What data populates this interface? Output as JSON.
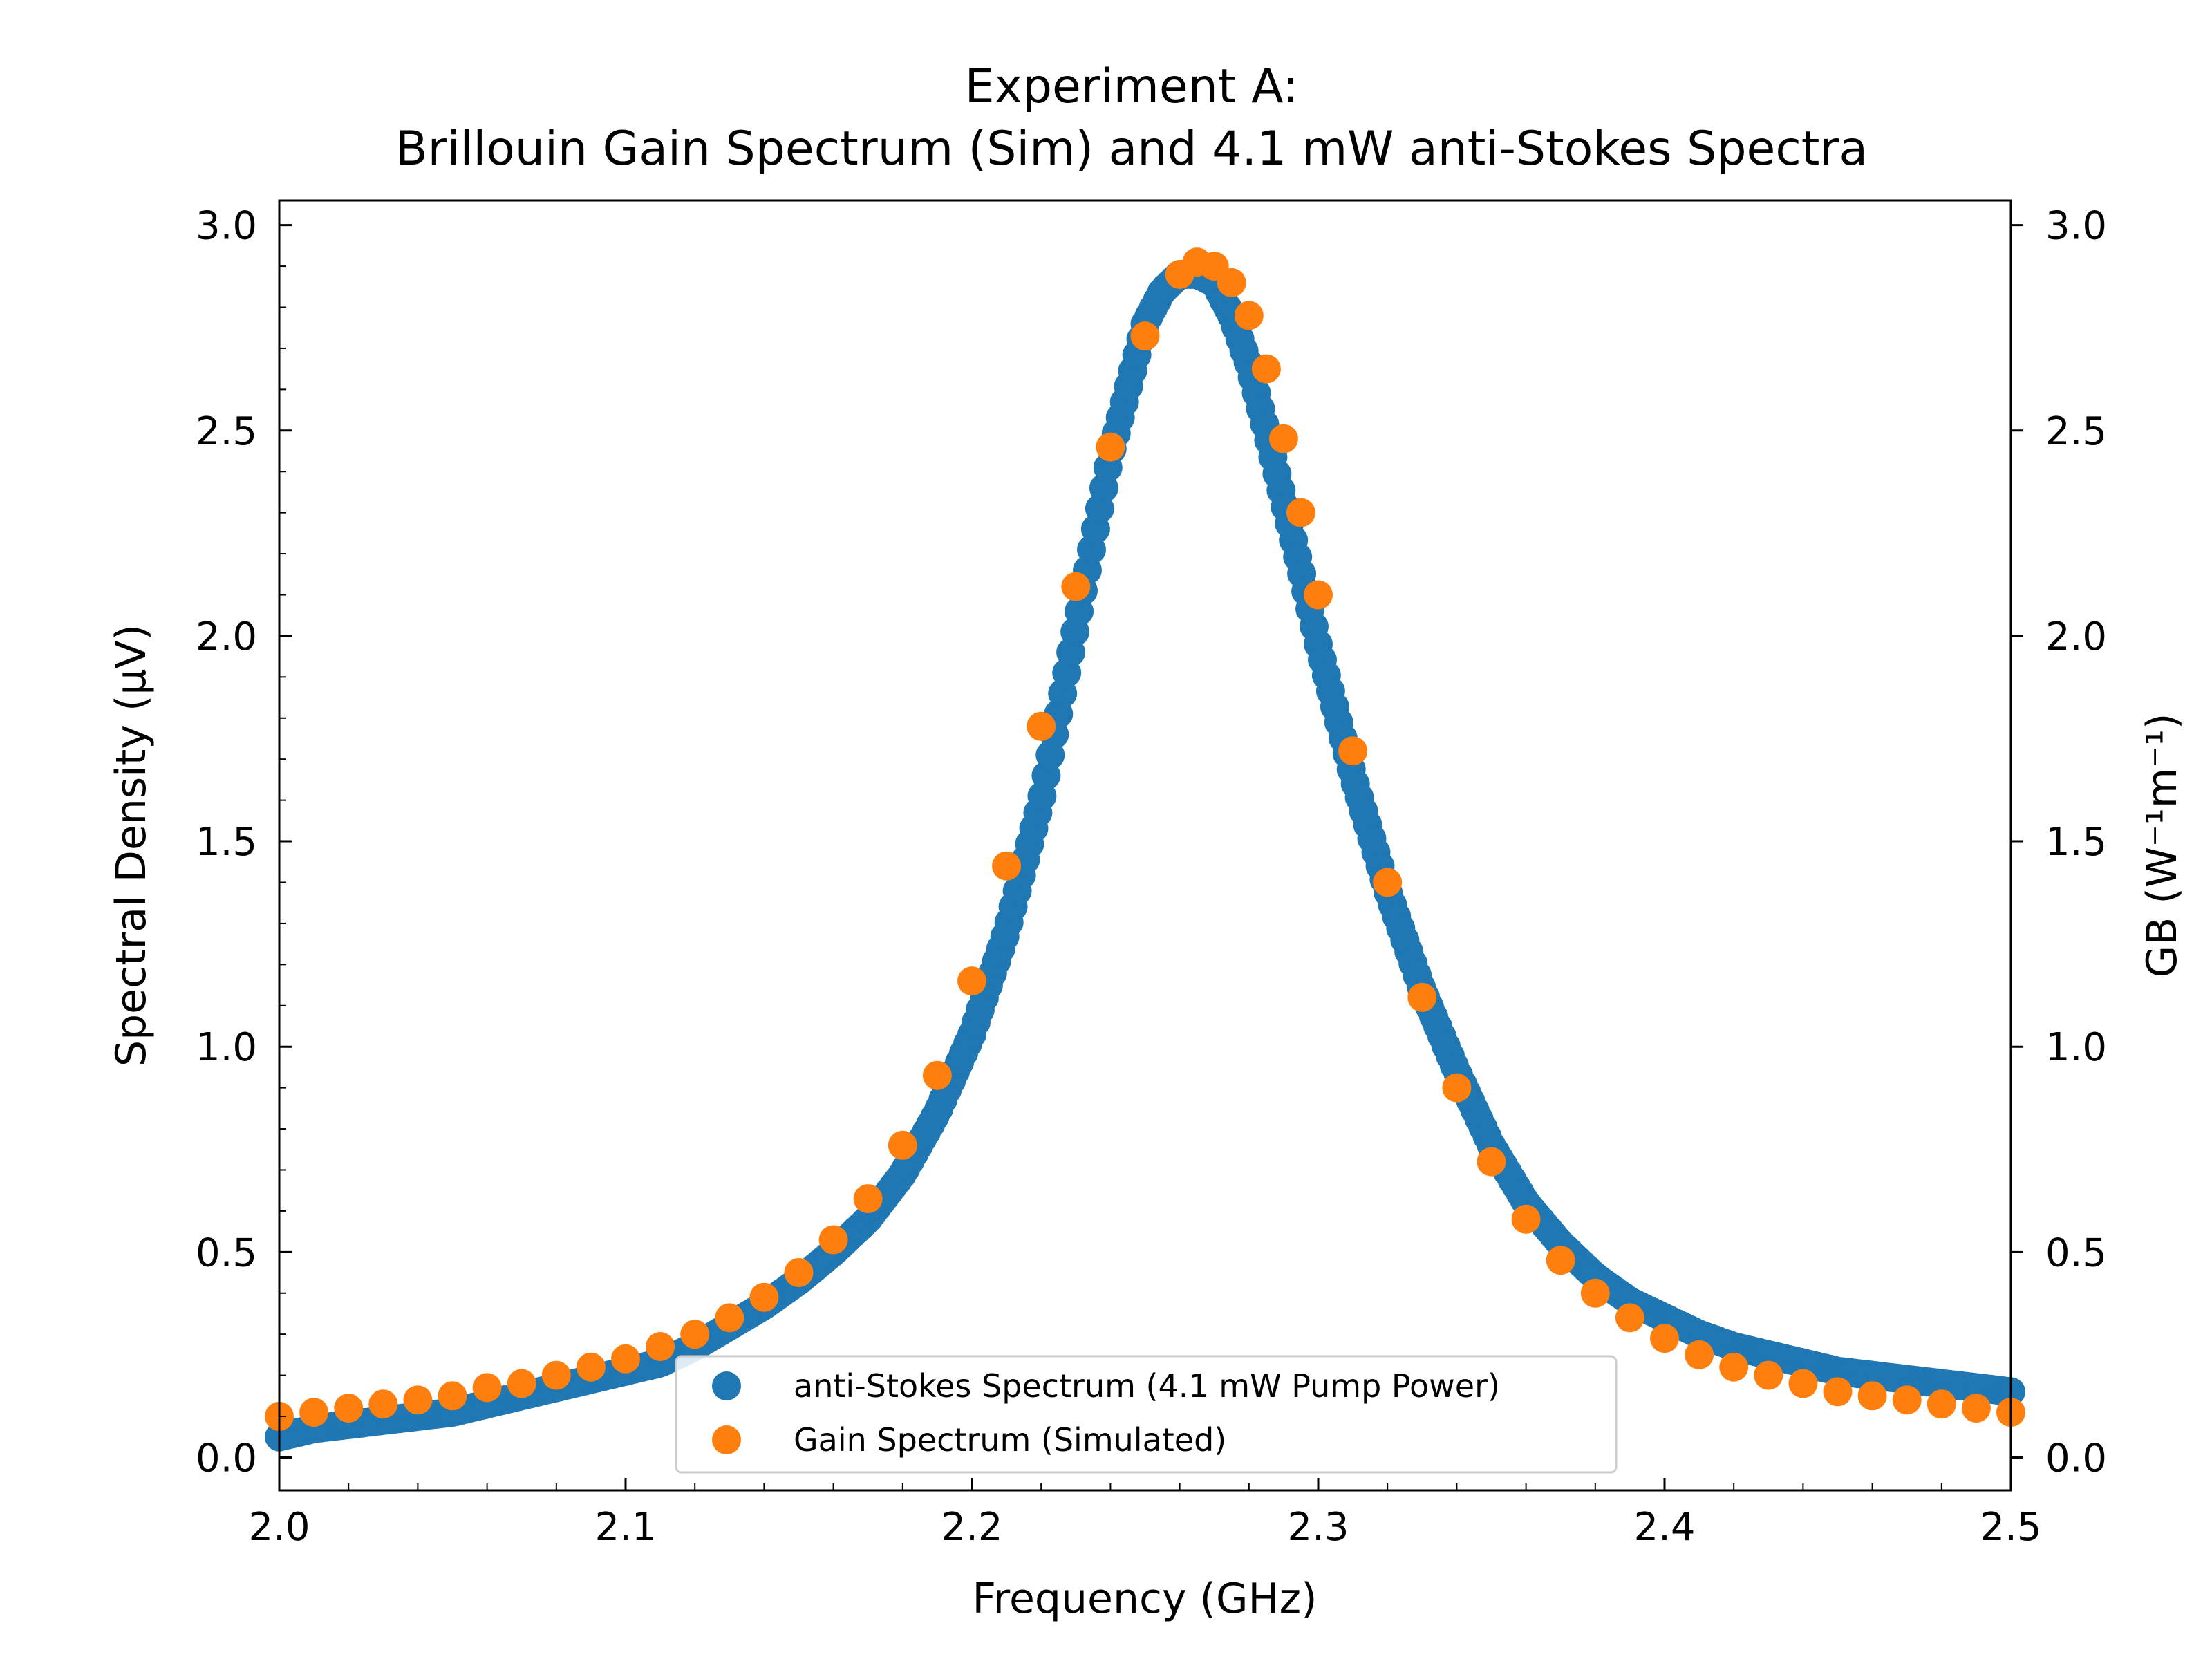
{
  "chart_data": {
    "type": "scatter",
    "title_lines": [
      "Experiment A:",
      "Brillouin Gain Spectrum (Sim) and 4.1 mW anti-Stokes Spectra"
    ],
    "xlabel": "Frequency (GHz)",
    "ylabel_left": "Spectral Density (μV)",
    "ylabel_right": "GB (W⁻¹m⁻¹)",
    "xlim": [
      2.0,
      2.5
    ],
    "ylim_left": [
      -0.08,
      3.06
    ],
    "ylim_right": [
      -0.08,
      3.06
    ],
    "xticks": [
      "2.0",
      "2.1",
      "2.2",
      "2.3",
      "2.4",
      "2.5"
    ],
    "yticks_left": [
      "0.0",
      "0.5",
      "1.0",
      "1.5",
      "2.0",
      "2.5",
      "3.0"
    ],
    "yticks_right": [
      "0.0",
      "0.5",
      "1.0",
      "1.5",
      "2.0",
      "2.5",
      "3.0"
    ],
    "grid": false,
    "legend_position": "bottom-center",
    "series": [
      {
        "name": "anti-Stokes Spectrum (4.1 mW Pump Power)",
        "color": "#1f77b4",
        "axis": "left",
        "x": [
          2.0,
          2.01,
          2.02,
          2.03,
          2.04,
          2.05,
          2.06,
          2.07,
          2.08,
          2.09,
          2.1,
          2.11,
          2.12,
          2.13,
          2.14,
          2.15,
          2.16,
          2.17,
          2.18,
          2.19,
          2.2,
          2.21,
          2.22,
          2.23,
          2.24,
          2.245,
          2.25,
          2.255,
          2.26,
          2.265,
          2.27,
          2.275,
          2.28,
          2.285,
          2.29,
          2.295,
          2.3,
          2.31,
          2.32,
          2.33,
          2.34,
          2.35,
          2.36,
          2.37,
          2.38,
          2.39,
          2.4,
          2.41,
          2.42,
          2.43,
          2.44,
          2.45,
          2.46,
          2.47,
          2.48,
          2.49,
          2.5
        ],
        "y": [
          0.05,
          0.07,
          0.08,
          0.09,
          0.1,
          0.11,
          0.13,
          0.15,
          0.17,
          0.19,
          0.21,
          0.23,
          0.27,
          0.32,
          0.37,
          0.43,
          0.5,
          0.58,
          0.69,
          0.84,
          1.03,
          1.28,
          1.6,
          2.02,
          2.44,
          2.6,
          2.76,
          2.84,
          2.88,
          2.88,
          2.86,
          2.78,
          2.66,
          2.5,
          2.33,
          2.16,
          1.98,
          1.66,
          1.38,
          1.14,
          0.94,
          0.76,
          0.62,
          0.52,
          0.44,
          0.38,
          0.34,
          0.3,
          0.27,
          0.25,
          0.23,
          0.21,
          0.2,
          0.19,
          0.18,
          0.17,
          0.16
        ]
      },
      {
        "name": "Gain Spectrum (Simulated)",
        "color": "#ff7f0e",
        "axis": "right",
        "x": [
          2.0,
          2.01,
          2.02,
          2.03,
          2.04,
          2.05,
          2.06,
          2.07,
          2.08,
          2.09,
          2.1,
          2.11,
          2.12,
          2.13,
          2.14,
          2.15,
          2.16,
          2.17,
          2.18,
          2.19,
          2.2,
          2.21,
          2.22,
          2.23,
          2.24,
          2.25,
          2.26,
          2.265,
          2.27,
          2.275,
          2.28,
          2.285,
          2.29,
          2.295,
          2.3,
          2.31,
          2.32,
          2.33,
          2.34,
          2.35,
          2.36,
          2.37,
          2.38,
          2.39,
          2.4,
          2.41,
          2.42,
          2.43,
          2.44,
          2.45,
          2.46,
          2.47,
          2.48,
          2.49,
          2.5
        ],
        "y": [
          0.1,
          0.11,
          0.12,
          0.13,
          0.14,
          0.15,
          0.17,
          0.18,
          0.2,
          0.22,
          0.24,
          0.27,
          0.3,
          0.34,
          0.39,
          0.45,
          0.53,
          0.63,
          0.76,
          0.93,
          1.16,
          1.44,
          1.78,
          2.12,
          2.46,
          2.73,
          2.88,
          2.91,
          2.9,
          2.86,
          2.78,
          2.65,
          2.48,
          2.3,
          2.1,
          1.72,
          1.4,
          1.12,
          0.9,
          0.72,
          0.58,
          0.48,
          0.4,
          0.34,
          0.29,
          0.25,
          0.22,
          0.2,
          0.18,
          0.16,
          0.15,
          0.14,
          0.13,
          0.12,
          0.11
        ]
      }
    ]
  }
}
